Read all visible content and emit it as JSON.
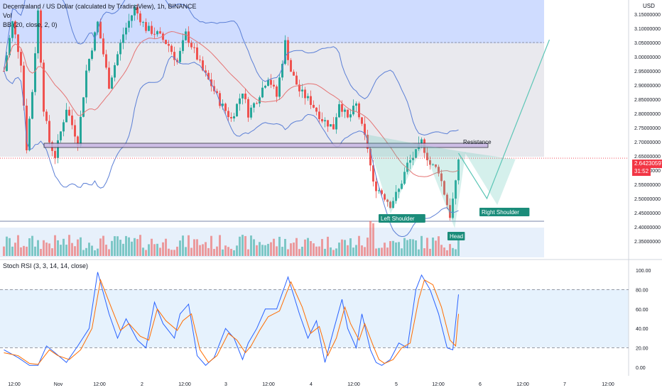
{
  "header": {
    "symbol_line": "Decentraland / US Dollar (calculated by TradingView), 1h, BINANCE",
    "vol_label": "Vol",
    "bb_label": "BB (20, close, 2, 0)",
    "currency": "USD"
  },
  "price_tag": {
    "value": "2.64230597",
    "countdown": "31:52"
  },
  "rsi_label": "Stoch RSI (3, 3, 14, 14, close)",
  "annotations": {
    "resistance": "Resistance",
    "left_shoulder": "Left Shoulder",
    "head": "Head",
    "right_shoulder": "Right Shoulder"
  },
  "colors": {
    "up": "#26a69a",
    "down": "#ef5350",
    "bb_band": "#5b7fd6",
    "bb_basis": "#e57373",
    "resistance_box": "#c9b6e4",
    "pattern": "#5cc6b6",
    "upper_zone": "#cfdcff",
    "mid_zone": "#e7e7ec",
    "rsi_bg": "#e6f2fd",
    "stoch_k": "#2962ff",
    "stoch_d": "#ff6d00"
  },
  "chart_data": [
    {
      "type": "candlestick",
      "title": "Decentraland / US Dollar (calculated by TradingView), 1h, BINANCE",
      "ylabel": "USD",
      "ylim": [
        2.32,
        3.17
      ],
      "y_ticks": [
        "3.15000000",
        "3.10000000",
        "3.05000000",
        "3.00000000",
        "2.95000000",
        "2.90000000",
        "2.85000000",
        "2.80000000",
        "2.75000000",
        "2.70000000",
        "2.65000000",
        "2.60000000",
        "2.55000000",
        "2.50000000",
        "2.45000000",
        "2.40000000",
        "2.35000000"
      ],
      "x_ticks": [
        "12:00",
        "Nov",
        "12:00",
        "2",
        "12:00",
        "3",
        "12:00",
        "4",
        "12:00",
        "5",
        "12:00",
        "6",
        "12:00",
        "7",
        "12:00"
      ],
      "key_points": [
        {
          "bar": 0,
          "p": 2.95
        },
        {
          "bar": 3,
          "p": 3.12
        },
        {
          "bar": 6,
          "p": 2.98
        },
        {
          "bar": 8,
          "p": 2.68
        },
        {
          "bar": 10,
          "p": 2.88
        },
        {
          "bar": 12,
          "p": 3.16
        },
        {
          "bar": 14,
          "p": 2.82
        },
        {
          "bar": 16,
          "p": 2.7
        },
        {
          "bar": 18,
          "p": 2.65
        },
        {
          "bar": 22,
          "p": 2.82
        },
        {
          "bar": 26,
          "p": 2.7
        },
        {
          "bar": 29,
          "p": 2.95
        },
        {
          "bar": 33,
          "p": 3.12
        },
        {
          "bar": 37,
          "p": 2.9
        },
        {
          "bar": 42,
          "p": 3.08
        },
        {
          "bar": 46,
          "p": 3.17
        },
        {
          "bar": 50,
          "p": 3.1
        },
        {
          "bar": 54,
          "p": 3.08
        },
        {
          "bar": 58,
          "p": 3.04
        },
        {
          "bar": 61,
          "p": 2.98
        },
        {
          "bar": 64,
          "p": 3.08
        },
        {
          "bar": 67,
          "p": 3.02
        },
        {
          "bar": 70,
          "p": 2.95
        },
        {
          "bar": 73,
          "p": 2.9
        },
        {
          "bar": 76,
          "p": 2.84
        },
        {
          "bar": 80,
          "p": 2.78
        },
        {
          "bar": 84,
          "p": 2.88
        },
        {
          "bar": 86,
          "p": 2.8
        },
        {
          "bar": 89,
          "p": 2.85
        },
        {
          "bar": 93,
          "p": 2.93
        },
        {
          "bar": 96,
          "p": 2.86
        },
        {
          "bar": 99,
          "p": 3.05
        },
        {
          "bar": 101,
          "p": 2.95
        },
        {
          "bar": 104,
          "p": 2.88
        },
        {
          "bar": 108,
          "p": 2.84
        },
        {
          "bar": 112,
          "p": 2.78
        },
        {
          "bar": 116,
          "p": 2.75
        },
        {
          "bar": 118,
          "p": 2.84
        },
        {
          "bar": 121,
          "p": 2.78
        },
        {
          "bar": 124,
          "p": 2.83
        },
        {
          "bar": 126,
          "p": 2.75
        },
        {
          "bar": 128,
          "p": 2.68
        },
        {
          "bar": 130,
          "p": 2.55
        },
        {
          "bar": 133,
          "p": 2.52
        },
        {
          "bar": 136,
          "p": 2.48
        },
        {
          "bar": 139,
          "p": 2.53
        },
        {
          "bar": 142,
          "p": 2.62
        },
        {
          "bar": 145,
          "p": 2.66
        },
        {
          "bar": 147,
          "p": 2.7
        },
        {
          "bar": 150,
          "p": 2.62
        },
        {
          "bar": 153,
          "p": 2.6
        },
        {
          "bar": 155,
          "p": 2.52
        },
        {
          "bar": 157,
          "p": 2.44
        },
        {
          "bar": 159,
          "p": 2.55
        },
        {
          "bar": 160,
          "p": 2.64
        }
      ],
      "bollinger_bands": {
        "period": 20,
        "source": "close",
        "mult": 2,
        "offset": 0
      },
      "resistance_zone": {
        "low": 2.68,
        "high": 2.695
      },
      "horizontal_line": 2.42,
      "current_price": 2.64230597,
      "projection": [
        {
          "bar": 160,
          "p": 2.66
        },
        {
          "bar": 170,
          "p": 2.5
        },
        {
          "bar": 192,
          "p": 3.06
        }
      ]
    },
    {
      "type": "line",
      "title": "Stoch RSI (3, 3, 14, 14, close)",
      "ylim": [
        -5,
        105
      ],
      "y_ticks": [
        "100.00",
        "80.00",
        "60.00",
        "40.00",
        "20.00",
        "0.00"
      ],
      "levels": [
        80,
        20
      ],
      "series": [
        {
          "name": "K",
          "points": [
            {
              "bar": 0,
              "v": 18
            },
            {
              "bar": 5,
              "v": 10
            },
            {
              "bar": 9,
              "v": 2
            },
            {
              "bar": 12,
              "v": 2
            },
            {
              "bar": 15,
              "v": 22
            },
            {
              "bar": 18,
              "v": 15
            },
            {
              "bar": 22,
              "v": 5
            },
            {
              "bar": 26,
              "v": 22
            },
            {
              "bar": 30,
              "v": 40
            },
            {
              "bar": 33,
              "v": 98
            },
            {
              "bar": 37,
              "v": 55
            },
            {
              "bar": 40,
              "v": 30
            },
            {
              "bar": 43,
              "v": 50
            },
            {
              "bar": 47,
              "v": 28
            },
            {
              "bar": 50,
              "v": 20
            },
            {
              "bar": 53,
              "v": 67
            },
            {
              "bar": 56,
              "v": 45
            },
            {
              "bar": 60,
              "v": 30
            },
            {
              "bar": 62,
              "v": 55
            },
            {
              "bar": 65,
              "v": 65
            },
            {
              "bar": 68,
              "v": 12
            },
            {
              "bar": 71,
              "v": 2
            },
            {
              "bar": 74,
              "v": 10
            },
            {
              "bar": 78,
              "v": 40
            },
            {
              "bar": 81,
              "v": 30
            },
            {
              "bar": 84,
              "v": 8
            },
            {
              "bar": 86,
              "v": 25
            },
            {
              "bar": 89,
              "v": 40
            },
            {
              "bar": 92,
              "v": 60
            },
            {
              "bar": 96,
              "v": 60
            },
            {
              "bar": 100,
              "v": 93
            },
            {
              "bar": 104,
              "v": 55
            },
            {
              "bar": 107,
              "v": 30
            },
            {
              "bar": 110,
              "v": 48
            },
            {
              "bar": 113,
              "v": 5
            },
            {
              "bar": 116,
              "v": 38
            },
            {
              "bar": 119,
              "v": 70
            },
            {
              "bar": 121,
              "v": 40
            },
            {
              "bar": 124,
              "v": 20
            },
            {
              "bar": 126,
              "v": 55
            },
            {
              "bar": 129,
              "v": 18
            },
            {
              "bar": 131,
              "v": 5
            },
            {
              "bar": 133,
              "v": 2
            },
            {
              "bar": 136,
              "v": 8
            },
            {
              "bar": 139,
              "v": 25
            },
            {
              "bar": 142,
              "v": 20
            },
            {
              "bar": 145,
              "v": 80
            },
            {
              "bar": 147,
              "v": 95
            },
            {
              "bar": 150,
              "v": 80
            },
            {
              "bar": 153,
              "v": 55
            },
            {
              "bar": 156,
              "v": 20
            },
            {
              "bar": 158,
              "v": 18
            },
            {
              "bar": 160,
              "v": 75
            }
          ]
        },
        {
          "name": "D",
          "points": [
            {
              "bar": 0,
              "v": 15
            },
            {
              "bar": 5,
              "v": 12
            },
            {
              "bar": 9,
              "v": 4
            },
            {
              "bar": 12,
              "v": 3
            },
            {
              "bar": 16,
              "v": 18
            },
            {
              "bar": 19,
              "v": 12
            },
            {
              "bar": 23,
              "v": 8
            },
            {
              "bar": 27,
              "v": 18
            },
            {
              "bar": 31,
              "v": 40
            },
            {
              "bar": 34,
              "v": 90
            },
            {
              "bar": 38,
              "v": 60
            },
            {
              "bar": 41,
              "v": 38
            },
            {
              "bar": 44,
              "v": 45
            },
            {
              "bar": 48,
              "v": 32
            },
            {
              "bar": 51,
              "v": 28
            },
            {
              "bar": 54,
              "v": 60
            },
            {
              "bar": 57,
              "v": 48
            },
            {
              "bar": 61,
              "v": 38
            },
            {
              "bar": 63,
              "v": 48
            },
            {
              "bar": 66,
              "v": 55
            },
            {
              "bar": 69,
              "v": 18
            },
            {
              "bar": 72,
              "v": 5
            },
            {
              "bar": 75,
              "v": 12
            },
            {
              "bar": 79,
              "v": 35
            },
            {
              "bar": 82,
              "v": 28
            },
            {
              "bar": 85,
              "v": 15
            },
            {
              "bar": 87,
              "v": 22
            },
            {
              "bar": 90,
              "v": 38
            },
            {
              "bar": 93,
              "v": 52
            },
            {
              "bar": 97,
              "v": 58
            },
            {
              "bar": 101,
              "v": 88
            },
            {
              "bar": 105,
              "v": 62
            },
            {
              "bar": 108,
              "v": 35
            },
            {
              "bar": 111,
              "v": 42
            },
            {
              "bar": 114,
              "v": 12
            },
            {
              "bar": 117,
              "v": 30
            },
            {
              "bar": 120,
              "v": 62
            },
            {
              "bar": 122,
              "v": 45
            },
            {
              "bar": 125,
              "v": 28
            },
            {
              "bar": 127,
              "v": 45
            },
            {
              "bar": 130,
              "v": 22
            },
            {
              "bar": 132,
              "v": 8
            },
            {
              "bar": 134,
              "v": 4
            },
            {
              "bar": 137,
              "v": 8
            },
            {
              "bar": 140,
              "v": 20
            },
            {
              "bar": 143,
              "v": 25
            },
            {
              "bar": 146,
              "v": 70
            },
            {
              "bar": 148,
              "v": 90
            },
            {
              "bar": 151,
              "v": 85
            },
            {
              "bar": 154,
              "v": 62
            },
            {
              "bar": 157,
              "v": 28
            },
            {
              "bar": 159,
              "v": 22
            },
            {
              "bar": 160,
              "v": 55
            }
          ]
        }
      ]
    }
  ]
}
